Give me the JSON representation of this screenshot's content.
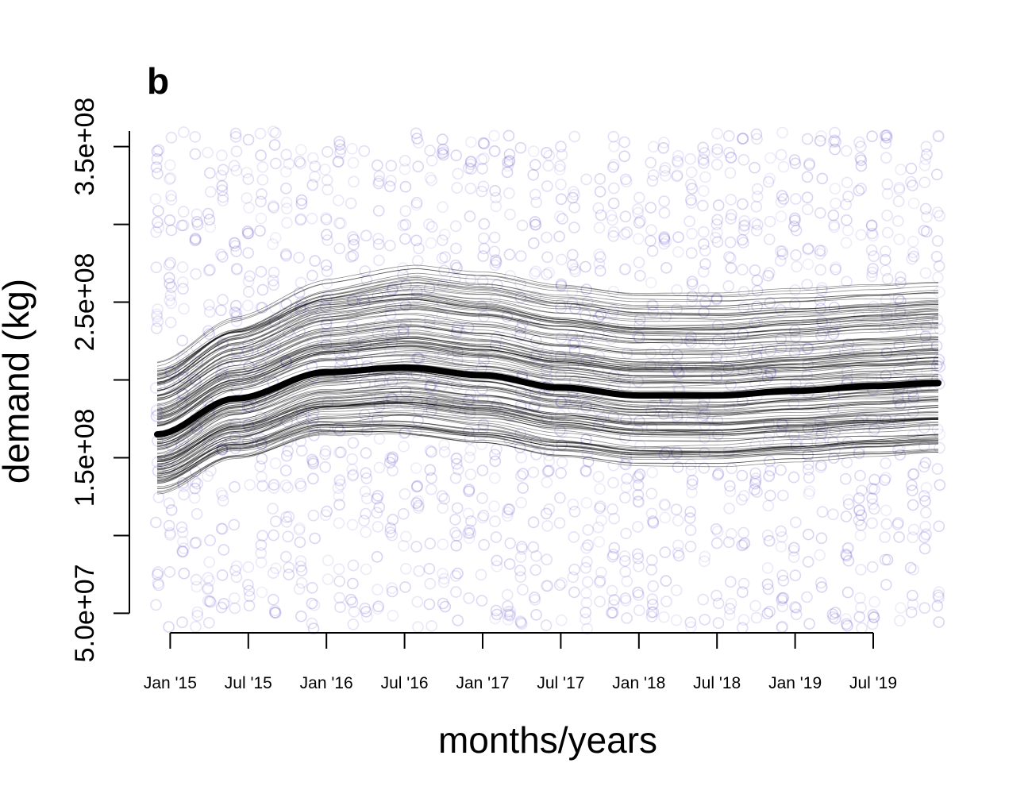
{
  "panel_label": "b",
  "chart_data": {
    "type": "scatter",
    "xlabel": "months/years",
    "ylabel": "demand (kg)",
    "x_tick_labels": [
      "Jan '15",
      "Jul '15",
      "Jan '16",
      "Jul '16",
      "Jan '17",
      "Jul '17",
      "Jan '18",
      "Jul '18",
      "Jan '19",
      "Jul '19"
    ],
    "x_tick_values": [
      "2015-01",
      "2015-07",
      "2016-01",
      "2016-07",
      "2017-01",
      "2017-07",
      "2018-01",
      "2018-07",
      "2019-01",
      "2019-07"
    ],
    "xlim": [
      "2014-12",
      "2019-12"
    ],
    "ylim": [
      40000000,
      360000000
    ],
    "y_ticks": [
      50000000,
      100000000,
      150000000,
      200000000,
      250000000,
      300000000,
      350000000
    ],
    "y_tick_labels": [
      "5.0e+07",
      "",
      "1.5e+08",
      "",
      "2.5e+08",
      "",
      "3.5e+08"
    ],
    "grid": false,
    "scatter_color": "#6a5acd",
    "scatter_opacity": 0.18,
    "points_per_month": 30,
    "points_range": [
      40000000,
      360000000
    ],
    "mean_curve": {
      "color": "#000000",
      "x": [
        "2014-12",
        "2015-06",
        "2016-01",
        "2016-07",
        "2017-01",
        "2017-07",
        "2018-01",
        "2018-07",
        "2019-01",
        "2019-07",
        "2019-12"
      ],
      "y": [
        165000000,
        188000000,
        205000000,
        208000000,
        203000000,
        195000000,
        190000000,
        190000000,
        193000000,
        196000000,
        198000000
      ]
    },
    "sample_curves": {
      "count": 150,
      "color": "#000000",
      "offset_range_start": [
        -35000000,
        45000000
      ],
      "offset_range_end": [
        -43000000,
        63000000
      ]
    }
  }
}
